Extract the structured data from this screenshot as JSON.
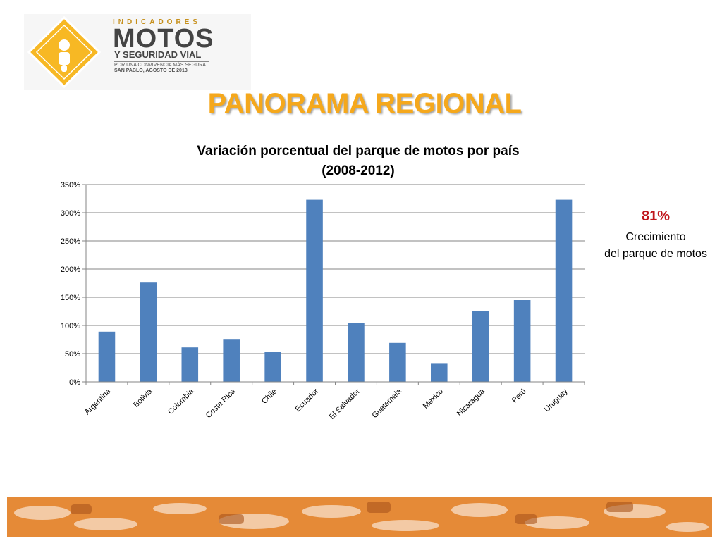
{
  "logo": {
    "top_text": "INDICADORES",
    "motos_text": "MOTOS",
    "subtitle": "Y SEGURIDAD VIAL",
    "tagline": "POR UNA CONVIVENCIA MÁS SEGURA",
    "event": "SAN PABLO,  AGOSTO  DE  2013",
    "seal_name": "motorcycle-rider-seal-icon",
    "colors": {
      "seal": "#f7b824",
      "text": "#444444",
      "accent": "#c6901c"
    }
  },
  "slide_title": "PANORAMA REGIONAL",
  "slide_title_color": "#f5a81c",
  "callout": {
    "value": "81%",
    "line1": "Crecimiento",
    "line2": "del parque de motos",
    "value_color": "#c0171d"
  },
  "chart_data": {
    "type": "bar",
    "title": "Variación porcentual del parque de motos por país",
    "subtitle": "(2008-2012)",
    "categories": [
      "Argentina",
      "Bolivia",
      "Colombia",
      "Costa Rica",
      "Chile",
      "Ecuador",
      "El Salvador",
      "Guatemala",
      "Mexico",
      "Nicaragua",
      "Perú",
      "Uruguay"
    ],
    "values": [
      89,
      176,
      61,
      76,
      53,
      323,
      104,
      69,
      32,
      126,
      145,
      323
    ],
    "ylim": [
      0,
      350
    ],
    "yticks": [
      "0%",
      "50%",
      "100%",
      "150%",
      "200%",
      "250%",
      "300%",
      "350%"
    ],
    "y_tick_values": [
      0,
      50,
      100,
      150,
      200,
      250,
      300,
      350
    ],
    "grid": true,
    "bar_color": "#4f81bd",
    "xlabel": "",
    "ylabel": ""
  },
  "footer": {
    "band_color": "#e07f2a",
    "image_name": "traffic-motorcycles-banner"
  }
}
